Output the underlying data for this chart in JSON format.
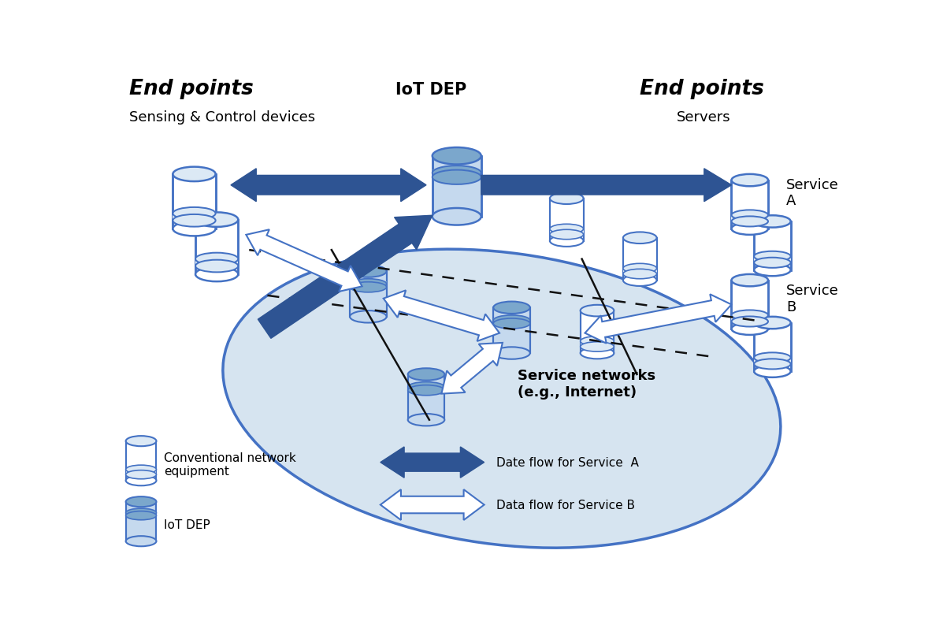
{
  "bg_color": "#ffffff",
  "ellipse_color": "#d6e4f0",
  "ellipse_edge_color": "#4472c4",
  "cyl_top_conv": "#dce9f5",
  "cyl_body_conv": "#ffffff",
  "cyl_top_iot": "#7ba7cc",
  "cyl_body_iot": "#c5d9ee",
  "cyl_edge": "#4472c4",
  "arrow_a_color": "#2e5493",
  "arrow_b_fill": "#ffffff",
  "arrow_b_edge": "#4472c4",
  "dash_color": "#111111",
  "solid_color": "#111111",
  "text_color": "#000000",
  "end_points_left": "End points",
  "end_points_right": "End points",
  "sensing_label": "Sensing & Control devices",
  "servers_label": "Servers",
  "iot_dep_top_label": "IoT DEP",
  "service_a_label": "Service\nA",
  "service_b_label": "Service\nB",
  "service_net_label": "Service networks\n(e.g., Internet)",
  "legend_conv_label": "Conventional network\nequipment",
  "legend_iot_label": "IoT DEP",
  "legend_a_label": "Date flow for Service  A",
  "legend_b_label": "Data flow for Service B"
}
